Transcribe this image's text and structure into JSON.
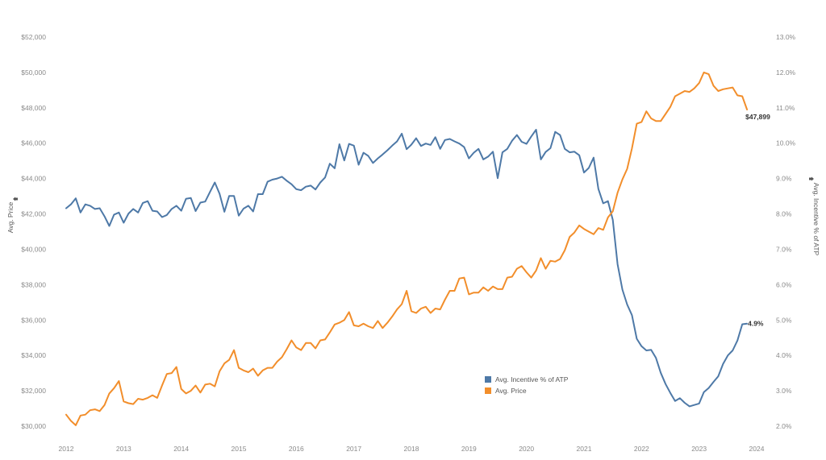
{
  "chart_data": {
    "type": "line",
    "title": "",
    "x_start": "2012-01",
    "x_end": "2023-10",
    "x_ticks": [
      "2012",
      "2013",
      "2014",
      "2015",
      "2016",
      "2017",
      "2018",
      "2019",
      "2020",
      "2021",
      "2022",
      "2023",
      "2024"
    ],
    "x_range": [
      2012.0,
      2024.0
    ],
    "left_axis": {
      "label": "Avg. Price",
      "ticks": [
        "$30,000",
        "$32,000",
        "$34,000",
        "$36,000",
        "$38,000",
        "$40,000",
        "$42,000",
        "$44,000",
        "$46,000",
        "$48,000",
        "$50,000",
        "$52,000"
      ],
      "range": [
        30000,
        52000
      ]
    },
    "right_axis": {
      "label": "Avg. Incentive % of ATP",
      "ticks": [
        "2.0%",
        "3.0%",
        "4.0%",
        "5.0%",
        "6.0%",
        "7.0%",
        "8.0%",
        "9.0%",
        "10.0%",
        "11.0%",
        "12.0%",
        "13.0%"
      ],
      "range": [
        2.0,
        13.0
      ]
    },
    "legend": {
      "placement": "center-bottom"
    },
    "series": [
      {
        "name": "Avg. Incentive % of ATP",
        "axis": "right",
        "color": "#4e79a7",
        "end_label": "4.9%",
        "values": [
          8.16,
          8.27,
          8.44,
          8.04,
          8.27,
          8.23,
          8.14,
          8.16,
          7.93,
          7.66,
          7.98,
          8.04,
          7.75,
          8.01,
          8.14,
          8.04,
          8.31,
          8.36,
          8.09,
          8.07,
          7.91,
          7.97,
          8.14,
          8.23,
          8.09,
          8.43,
          8.45,
          8.08,
          8.32,
          8.35,
          8.62,
          8.89,
          8.57,
          8.06,
          8.51,
          8.51,
          7.95,
          8.15,
          8.23,
          8.07,
          8.56,
          8.56,
          8.91,
          8.97,
          9.0,
          9.05,
          8.94,
          8.84,
          8.7,
          8.67,
          8.77,
          8.8,
          8.69,
          8.89,
          9.03,
          9.42,
          9.29,
          9.97,
          9.51,
          9.98,
          9.93,
          9.39,
          9.73,
          9.64,
          9.44,
          9.57,
          9.68,
          9.8,
          9.93,
          10.05,
          10.27,
          9.83,
          9.96,
          10.14,
          9.92,
          9.99,
          9.95,
          10.17,
          9.84,
          10.09,
          10.12,
          10.05,
          9.99,
          9.89,
          9.57,
          9.73,
          9.84,
          9.54,
          9.62,
          9.76,
          9.01,
          9.74,
          9.84,
          10.07,
          10.23,
          10.04,
          9.98,
          10.19,
          10.38,
          9.54,
          9.75,
          9.86,
          10.32,
          10.23,
          9.84,
          9.74,
          9.76,
          9.66,
          9.17,
          9.3,
          9.59,
          8.71,
          8.3,
          8.36,
          7.83,
          6.58,
          5.86,
          5.44,
          5.14,
          4.47,
          4.26,
          4.14,
          4.16,
          3.93,
          3.51,
          3.19,
          2.94,
          2.71,
          2.79,
          2.66,
          2.56,
          2.6,
          2.64,
          2.96,
          3.08,
          3.25,
          3.41,
          3.76,
          4.0,
          4.14,
          4.42,
          4.88,
          4.9
        ]
      },
      {
        "name": "Avg. Price",
        "axis": "left",
        "color": "#f28e2b",
        "end_label": "$47,899",
        "values": [
          30650,
          30300,
          30050,
          30600,
          30650,
          30900,
          30950,
          30850,
          31200,
          31850,
          32150,
          32550,
          31400,
          31300,
          31250,
          31550,
          31500,
          31600,
          31750,
          31600,
          32300,
          32950,
          33000,
          33350,
          32100,
          31850,
          32000,
          32300,
          31900,
          32350,
          32400,
          32250,
          33100,
          33550,
          33750,
          34300,
          33300,
          33150,
          33050,
          33250,
          32850,
          33150,
          33300,
          33300,
          33650,
          33900,
          34350,
          34850,
          34450,
          34300,
          34700,
          34700,
          34400,
          34850,
          34900,
          35300,
          35750,
          35850,
          36000,
          36450,
          35700,
          35650,
          35800,
          35650,
          35550,
          35950,
          35550,
          35850,
          36200,
          36600,
          36900,
          37650,
          36500,
          36400,
          36650,
          36750,
          36400,
          36650,
          36600,
          37150,
          37650,
          37650,
          38350,
          38400,
          37450,
          37550,
          37550,
          37850,
          37650,
          37900,
          37750,
          37750,
          38400,
          38450,
          38900,
          39050,
          38700,
          38400,
          38800,
          39500,
          38900,
          39350,
          39300,
          39450,
          39950,
          40700,
          40950,
          41350,
          41150,
          41000,
          40850,
          41200,
          41100,
          41800,
          42150,
          43200,
          43950,
          44550,
          45700,
          47100,
          47200,
          47800,
          47400,
          47250,
          47250,
          47650,
          48050,
          48650,
          48800,
          48950,
          48900,
          49100,
          49400,
          50000,
          49900,
          49250,
          48950,
          49050,
          49100,
          49150,
          48700,
          48650,
          47899
        ]
      }
    ]
  }
}
